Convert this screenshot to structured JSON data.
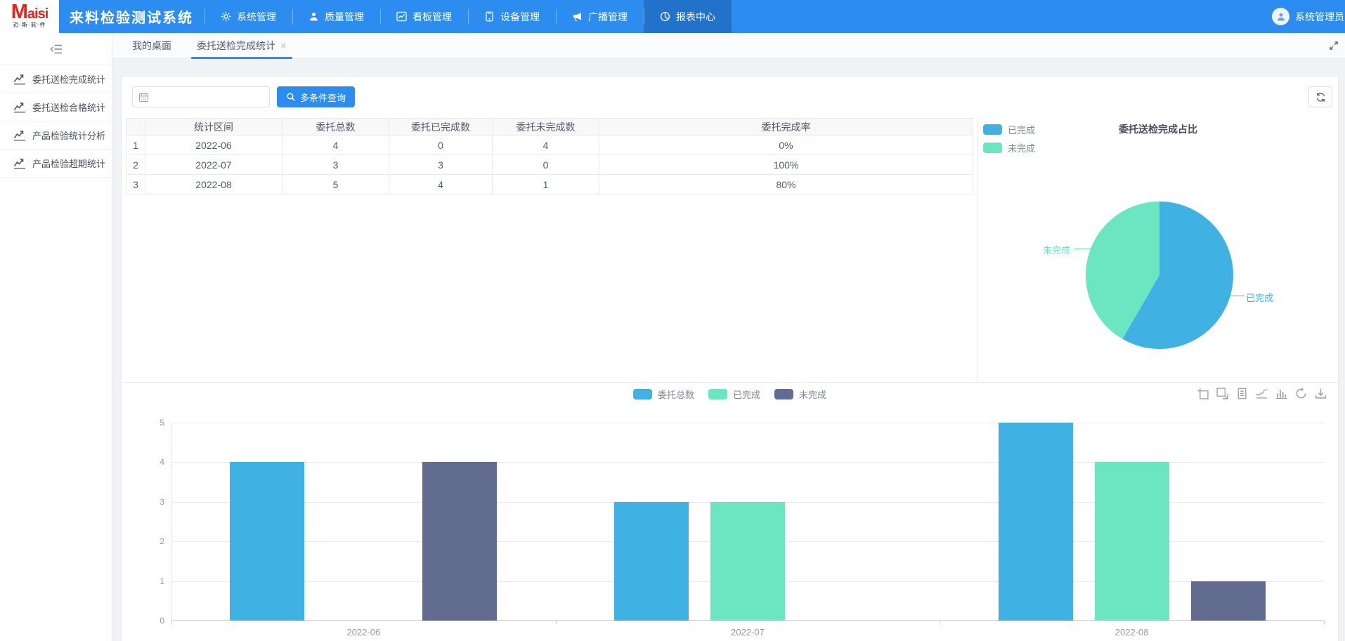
{
  "app": {
    "logo_title": "Maisi",
    "logo_subtitle": "迈·斯·软·件",
    "title": "来料检验测试系统",
    "nav_items": [
      {
        "label": "系统管理",
        "icon": "gear",
        "active": false
      },
      {
        "label": "质量管理",
        "icon": "user",
        "active": false
      },
      {
        "label": "看板管理",
        "icon": "board-chart",
        "active": false
      },
      {
        "label": "设备管理",
        "icon": "device",
        "active": false
      },
      {
        "label": "广播管理",
        "icon": "megaphone",
        "active": false
      },
      {
        "label": "报表中心",
        "icon": "pie",
        "active": true
      }
    ],
    "user_name": "系统管理员",
    "navbar_color": "#2d8cf0",
    "navbar_active_color": "#2272cc"
  },
  "sidebar": {
    "items": [
      {
        "label": "委托送检完成统计",
        "icon": "trend"
      },
      {
        "label": "委托送检合格统计",
        "icon": "trend"
      },
      {
        "label": "产品检验统计分析",
        "icon": "trend"
      },
      {
        "label": "产品检验超期统计",
        "icon": "trend"
      }
    ]
  },
  "tabs": [
    {
      "label": "我的桌面",
      "active": false,
      "closable": false
    },
    {
      "label": "委托送检完成统计",
      "active": true,
      "closable": true
    }
  ],
  "toolbar": {
    "date_placeholder": "",
    "date_value": "",
    "query_button": "多条件查询"
  },
  "table": {
    "headers": [
      "",
      "统计区间",
      "委托总数",
      "委托已完成数",
      "委托未完成数",
      "委托完成率"
    ],
    "rows": [
      [
        "1",
        "2022-06",
        "4",
        "0",
        "4",
        "0%"
      ],
      [
        "2",
        "2022-07",
        "3",
        "3",
        "0",
        "100%"
      ],
      [
        "3",
        "2022-08",
        "5",
        "4",
        "1",
        "80%"
      ]
    ]
  },
  "chart_data": [
    {
      "type": "pie",
      "title": "委托送检完成占比",
      "legend_position": "top-left",
      "slices": [
        {
          "name": "已完成",
          "value": 7,
          "percent": 58.33,
          "color": "#3fb1e3"
        },
        {
          "name": "未完成",
          "value": 5,
          "percent": 41.67,
          "color": "#6be6c1"
        }
      ]
    },
    {
      "type": "bar",
      "categories": [
        "2022-06",
        "2022-07",
        "2022-08"
      ],
      "series": [
        {
          "name": "委托总数",
          "color": "#3fb1e3",
          "values": [
            4,
            3,
            5
          ]
        },
        {
          "name": "已完成",
          "color": "#6be6c1",
          "values": [
            0,
            3,
            4
          ]
        },
        {
          "name": "未完成",
          "color": "#626c91",
          "values": [
            4,
            0,
            1
          ]
        }
      ],
      "ylim": [
        0,
        5
      ],
      "yticks": [
        0,
        1,
        2,
        3,
        4,
        5
      ],
      "grid": true,
      "legend_position": "top-center",
      "toolbox": [
        "zoom-area",
        "zoom-reset",
        "data-view",
        "line-chart",
        "bar-chart",
        "restore",
        "save-image"
      ]
    }
  ]
}
